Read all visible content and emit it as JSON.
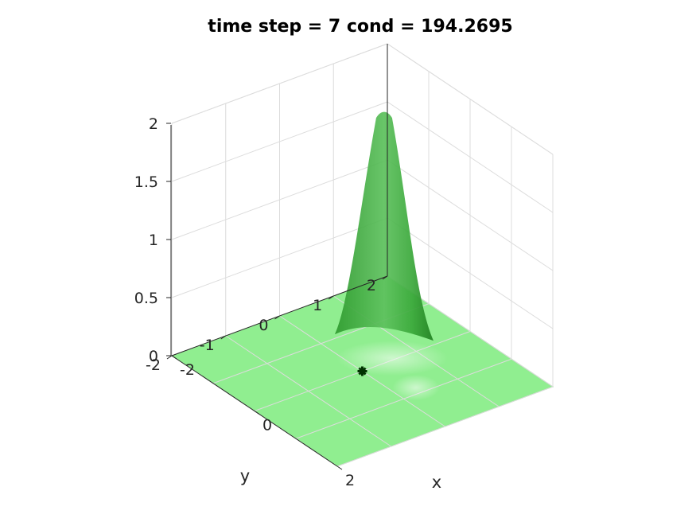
{
  "chart_data": {
    "type": "surface",
    "title": "time step = 7 cond = 194.2695",
    "xlabel": "x",
    "ylabel": "y",
    "zlabel": "",
    "xlim": [
      -2,
      2
    ],
    "ylim": [
      -2,
      2
    ],
    "zlim": [
      0,
      2
    ],
    "x_ticks": [
      -2,
      0,
      2
    ],
    "x_tick_labels": [
      "-2",
      "0",
      "2"
    ],
    "y_ticks": [
      -2,
      -1,
      0,
      1,
      2
    ],
    "y_tick_labels": [
      "-2",
      "-1",
      "0",
      "1",
      "2"
    ],
    "z_ticks": [
      0,
      0.5,
      1,
      1.5,
      2
    ],
    "z_tick_labels": [
      "0",
      "0.5",
      "1",
      "1.5",
      "2"
    ],
    "grid": true,
    "surface_color": "#90ee90",
    "peak_color": "#2ca02c",
    "peak": {
      "x": -0.45,
      "y": 0.75,
      "height": 2.0
    },
    "marker": {
      "x": 0,
      "y": 0,
      "z": 0,
      "color": "#003300"
    }
  }
}
